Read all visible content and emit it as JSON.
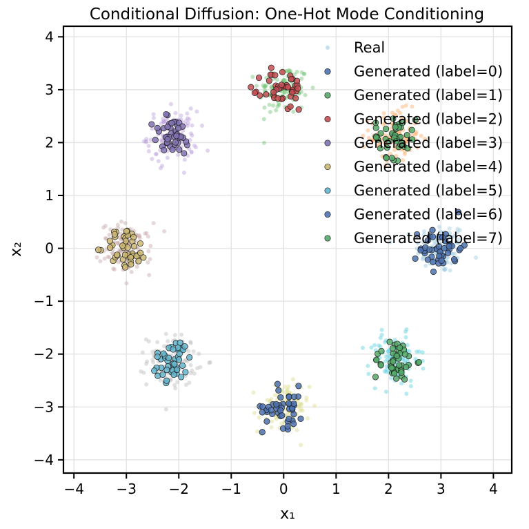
{
  "chart_data": {
    "type": "scatter",
    "title": "Conditional Diffusion: One-Hot Mode Conditioning",
    "xlabel": "x₁",
    "ylabel": "x₂",
    "xlim": [
      -4.2,
      4.35
    ],
    "ylim": [
      -4.25,
      4.2
    ],
    "xticks": [
      -4,
      -3,
      -2,
      -1,
      0,
      1,
      2,
      3,
      4
    ],
    "yticks": [
      -4,
      -3,
      -2,
      -1,
      0,
      1,
      2,
      3,
      4
    ],
    "xtick_labels": [
      "−4",
      "−3",
      "−2",
      "−1",
      "0",
      "1",
      "2",
      "3",
      "4"
    ],
    "ytick_labels": [
      "−4",
      "−3",
      "−2",
      "−1",
      "0",
      "1",
      "2",
      "3",
      "4"
    ],
    "grid": true,
    "legend_position": "top-right",
    "real_colors": [
      "#9ecae1",
      "#74c476",
      "#fdae6b",
      "#bca0dc",
      "#c7a8a8",
      "#bdbdbd",
      "#dbdb8d",
      "#5bd0e0"
    ],
    "series": [
      {
        "name": "Real",
        "kind": "real",
        "color": "#9ecae1",
        "n_per_mode": 110,
        "std": 0.24,
        "centers": [
          [
            3.0,
            0.0
          ],
          [
            0.0,
            3.0
          ],
          [
            2.12,
            2.12
          ],
          [
            -2.12,
            2.12
          ],
          [
            -3.0,
            0.0
          ],
          [
            -2.12,
            -2.12
          ],
          [
            0.0,
            -3.0
          ],
          [
            2.12,
            -2.12
          ]
        ]
      },
      {
        "name": "Generated (label=0)",
        "color": "#4c72b0",
        "center": [
          3.0,
          0.0
        ],
        "n": 45,
        "std": 0.2
      },
      {
        "name": "Generated (label=1)",
        "color": "#55a868",
        "center": [
          2.12,
          -2.12
        ],
        "n": 45,
        "std": 0.2
      },
      {
        "name": "Generated (label=2)",
        "color": "#c44e52",
        "center": [
          0.0,
          3.0
        ],
        "n": 45,
        "std": 0.2
      },
      {
        "name": "Generated (label=3)",
        "color": "#8172b3",
        "center": [
          -2.12,
          2.12
        ],
        "n": 45,
        "std": 0.2
      },
      {
        "name": "Generated (label=4)",
        "color": "#ccb974",
        "center": [
          -3.0,
          0.0
        ],
        "n": 45,
        "std": 0.2
      },
      {
        "name": "Generated (label=5)",
        "color": "#64b5cd",
        "center": [
          -2.12,
          -2.12
        ],
        "n": 45,
        "std": 0.2
      },
      {
        "name": "Generated (label=6)",
        "color": "#4c72b0",
        "center": [
          0.0,
          -3.0
        ],
        "n": 45,
        "std": 0.2
      },
      {
        "name": "Generated (label=7)",
        "color": "#55a868",
        "center": [
          2.12,
          2.12
        ],
        "n": 45,
        "std": 0.2
      }
    ]
  }
}
